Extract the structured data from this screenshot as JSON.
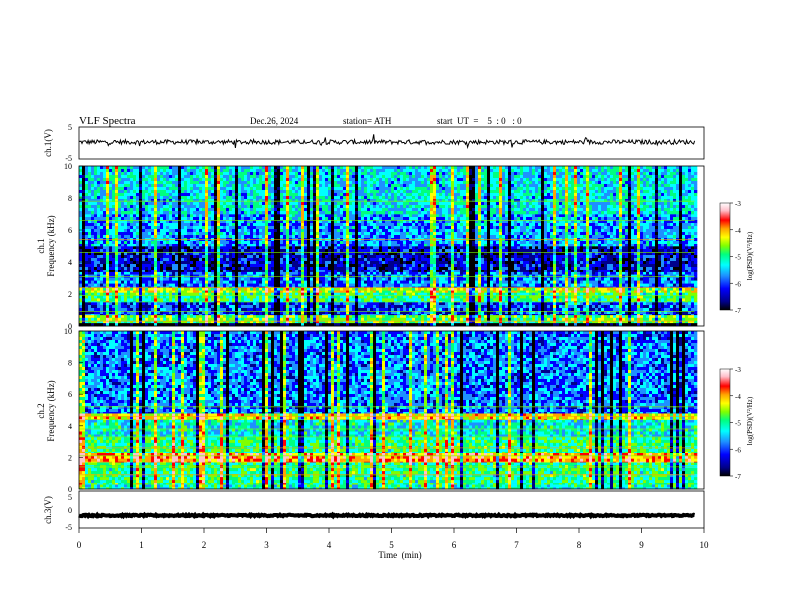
{
  "header": {
    "title": "VLF  Spectra",
    "date": "Dec.26, 2024",
    "station": "station= ATH",
    "start_ut": "start  UT  =    5  : 0   : 0"
  },
  "colors": {
    "ramp": [
      "#000000",
      "#00008b",
      "#0000ff",
      "#1e90ff",
      "#00ffff",
      "#00ff7f",
      "#7fff00",
      "#ffff00",
      "#ffa500",
      "#ff0000",
      "#ffc0cb",
      "#ffffff"
    ]
  },
  "chart_data": [
    {
      "id": "ch1-wave",
      "type": "line",
      "ylabel": "ch.1(V)",
      "ylim": [
        -5,
        5
      ],
      "yticks": [
        "5",
        "-5"
      ],
      "xlim": [
        0,
        10
      ],
      "mean": 0.3,
      "noise_amp": 0.7
    },
    {
      "id": "ch1-spec",
      "type": "heatmap",
      "ylabel_a": "ch.1",
      "ylabel_b": "Frequency  (kHz)",
      "ylim": [
        0,
        10
      ],
      "yticks": [
        "0",
        "2",
        "4",
        "6",
        "8",
        "10"
      ],
      "xlim": [
        0,
        10
      ],
      "bands": [
        {
          "f0": 0.0,
          "f1": 0.2,
          "level": 0.0
        },
        {
          "f0": 0.2,
          "f1": 0.7,
          "level": 0.55
        },
        {
          "f0": 0.7,
          "f1": 1.5,
          "level": 0.25
        },
        {
          "f0": 1.5,
          "f1": 2.1,
          "level": 0.5
        },
        {
          "f0": 2.1,
          "f1": 2.4,
          "level": 0.65
        },
        {
          "f0": 2.4,
          "f1": 3.4,
          "level": 0.3
        },
        {
          "f0": 3.4,
          "f1": 5.0,
          "level": 0.18
        },
        {
          "f0": 5.0,
          "f1": 7.0,
          "level": 0.33
        },
        {
          "f0": 7.0,
          "f1": 10.0,
          "level": 0.4
        }
      ],
      "lines_khz": [
        0.3,
        0.9,
        1.9,
        2.4,
        3.1,
        4.6,
        5.4,
        6.6,
        7.8
      ],
      "colorbar": {
        "label": "log(PSD)(V²/Hz)",
        "ticks": [
          "-3",
          "-4",
          "-5",
          "-6",
          "-7"
        ],
        "range": [
          -7,
          -3
        ]
      }
    },
    {
      "id": "ch2-spec",
      "type": "heatmap",
      "ylabel_a": "ch.2",
      "ylabel_b": "Frequency  (kHz)",
      "ylim": [
        0,
        10
      ],
      "yticks": [
        "0",
        "2",
        "4",
        "6",
        "8",
        "10"
      ],
      "xlim": [
        0,
        10
      ],
      "bands": [
        {
          "f0": 0.0,
          "f1": 0.3,
          "level": 0.45
        },
        {
          "f0": 0.3,
          "f1": 1.7,
          "level": 0.5
        },
        {
          "f0": 1.7,
          "f1": 2.3,
          "level": 0.8
        },
        {
          "f0": 2.3,
          "f1": 3.3,
          "level": 0.5
        },
        {
          "f0": 3.3,
          "f1": 4.4,
          "level": 0.42
        },
        {
          "f0": 4.4,
          "f1": 4.8,
          "level": 0.7
        },
        {
          "f0": 4.8,
          "f1": 10.0,
          "level": 0.3
        }
      ],
      "lines_khz": [
        0.9,
        1.4,
        2.1,
        2.6,
        3.3,
        3.8,
        4.6,
        5.2
      ],
      "colorbar": {
        "label": "log(PSD)(V²/Hz)",
        "ticks": [
          "-3",
          "-4",
          "-5",
          "-6",
          "-7"
        ],
        "range": [
          -7,
          -3
        ]
      }
    },
    {
      "id": "ch3-wave",
      "type": "line",
      "ylabel": "ch.3(V)",
      "ylim": [
        -5,
        5
      ],
      "yticks": [
        "5",
        "0",
        "-5"
      ],
      "xlim": [
        0,
        10
      ],
      "xticks": [
        "0",
        "1",
        "2",
        "3",
        "4",
        "5",
        "6",
        "7",
        "8",
        "9",
        "10"
      ],
      "xlabel": "Time  (min)",
      "mean": -1.6,
      "noise_amp": 0.2
    }
  ]
}
